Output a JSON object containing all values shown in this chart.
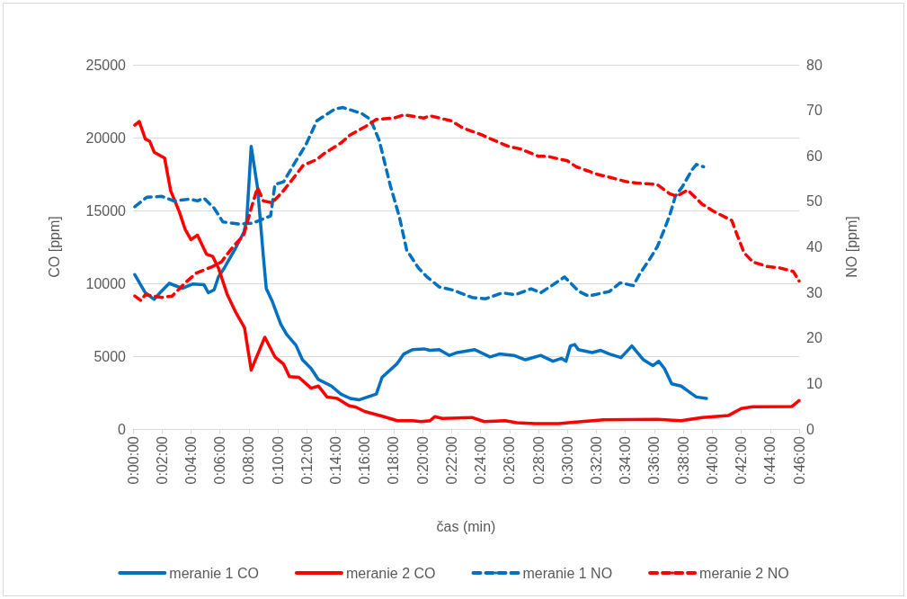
{
  "chart_data": {
    "type": "line",
    "xlabel": "čas (min)",
    "ylabel": "CO [ppm]",
    "y2label": "NO [ppm]",
    "xlim": [
      0,
      46
    ],
    "xticks": [
      {
        "value": 0,
        "label": "0:00:00"
      },
      {
        "value": 2,
        "label": "0:02:00"
      },
      {
        "value": 4,
        "label": "0:04:00"
      },
      {
        "value": 6,
        "label": "0:06:00"
      },
      {
        "value": 8,
        "label": "0:08:00"
      },
      {
        "value": 10,
        "label": "0:10:00"
      },
      {
        "value": 12,
        "label": "0:12:00"
      },
      {
        "value": 14,
        "label": "0:14:00"
      },
      {
        "value": 16,
        "label": "0:16:00"
      },
      {
        "value": 18,
        "label": "0:18:00"
      },
      {
        "value": 20,
        "label": "0:20:00"
      },
      {
        "value": 22,
        "label": "0:22:00"
      },
      {
        "value": 24,
        "label": "0:24:00"
      },
      {
        "value": 26,
        "label": "0:26:00"
      },
      {
        "value": 28,
        "label": "0:28:00"
      },
      {
        "value": 30,
        "label": "0:30:00"
      },
      {
        "value": 32,
        "label": "0:32:00"
      },
      {
        "value": 34,
        "label": "0:34:00"
      },
      {
        "value": 36,
        "label": "0:36:00"
      },
      {
        "value": 38,
        "label": "0:38:00"
      },
      {
        "value": 40,
        "label": "0:40:00"
      },
      {
        "value": 42,
        "label": "0:42:00"
      },
      {
        "value": 44,
        "label": "0:44:00"
      },
      {
        "value": 46,
        "label": "0:46:00"
      }
    ],
    "ylim": [
      0,
      25000
    ],
    "yticks": [
      0,
      5000,
      10000,
      15000,
      20000,
      25000
    ],
    "y2lim": [
      0,
      80
    ],
    "y2ticks": [
      0,
      10,
      20,
      30,
      40,
      50,
      60,
      70,
      80
    ],
    "grid": "y",
    "legend": "bottom",
    "marker": "none",
    "series": [
      {
        "name": "meranie 1 CO",
        "color": "#0070c0",
        "line_style": "solid",
        "x": [
          0.12,
          0.85,
          1.46,
          1.86,
          2.5,
          3.4,
          4.1,
          4.9,
          5.2,
          5.6,
          5.9,
          6.3,
          7.1,
          7.65,
          7.85,
          8.16,
          8.6,
          9.0,
          9.2,
          9.6,
          10.2,
          10.6,
          11.25,
          11.7,
          12.3,
          12.8,
          13.7,
          14.35,
          15.0,
          15.6,
          16.8,
          17.2,
          18.25,
          18.7,
          19.3,
          20.1,
          20.5,
          21.15,
          21.85,
          22.4,
          23.6,
          24.65,
          25.3,
          26.3,
          27.1,
          28.15,
          29.0,
          29.6,
          29.9,
          30.2,
          30.5,
          30.75,
          31.7,
          32.3,
          32.9,
          33.7,
          34.45,
          35.25,
          35.9,
          36.3,
          36.7,
          37.2,
          37.85,
          38.9,
          39.6
        ],
        "values": [
          10600,
          9350,
          8900,
          9350,
          10000,
          9650,
          9950,
          9900,
          9350,
          9550,
          10450,
          11050,
          12450,
          13500,
          14300,
          19400,
          16550,
          11850,
          9650,
          8800,
          7200,
          6500,
          5750,
          4750,
          4150,
          3400,
          2950,
          2400,
          2100,
          2000,
          2400,
          3550,
          4500,
          5150,
          5450,
          5500,
          5400,
          5450,
          5050,
          5250,
          5450,
          4950,
          5150,
          5050,
          4750,
          5050,
          4650,
          4850,
          4650,
          5700,
          5800,
          5450,
          5250,
          5400,
          5150,
          4900,
          5700,
          4750,
          4350,
          4650,
          4150,
          3100,
          2950,
          2200,
          2100
        ]
      },
      {
        "name": "meranie 2 CO",
        "color": "#ff0000",
        "line_style": "solid",
        "x": [
          0.12,
          0.43,
          0.85,
          1.15,
          1.46,
          2.18,
          2.6,
          3.2,
          3.6,
          4.0,
          4.45,
          5.07,
          5.5,
          5.9,
          6.5,
          7.1,
          7.7,
          8.16,
          9.1,
          9.8,
          10.4,
          10.8,
          11.45,
          12.3,
          12.8,
          13.4,
          14.1,
          14.9,
          15.4,
          16.0,
          17.2,
          18.25,
          19.3,
          19.9,
          20.5,
          20.85,
          21.35,
          23.4,
          24.25,
          25.7,
          26.5,
          27.75,
          29.4,
          30.4,
          32.5,
          36.2,
          37.85,
          39.3,
          41.1,
          42.0,
          42.8,
          45.5,
          46.0
        ],
        "values": [
          20850,
          21100,
          19900,
          19750,
          19000,
          18600,
          16350,
          14900,
          13700,
          13000,
          13300,
          12000,
          11850,
          11050,
          9250,
          8000,
          6950,
          4050,
          6300,
          4950,
          4450,
          3600,
          3550,
          2800,
          2950,
          2200,
          2100,
          1600,
          1500,
          1200,
          880,
          570,
          570,
          510,
          570,
          850,
          730,
          790,
          510,
          570,
          430,
          370,
          370,
          470,
          630,
          670,
          570,
          790,
          920,
          1400,
          1530,
          1550,
          1950
        ]
      },
      {
        "name": "meranie 1 NO",
        "color": "#0070c0",
        "line_style": "dashed",
        "axis": "y2",
        "x": [
          0.12,
          0.95,
          2.0,
          2.8,
          3.95,
          4.45,
          4.9,
          5.6,
          6.2,
          7.35,
          8.27,
          9.5,
          9.8,
          10.4,
          11.25,
          11.9,
          12.7,
          13.95,
          14.5,
          15.8,
          16.4,
          17.0,
          17.75,
          18.4,
          18.9,
          19.7,
          20.3,
          21.15,
          22.1,
          23.4,
          24.35,
          25.5,
          26.4,
          27.5,
          28.15,
          29.2,
          29.8,
          30.8,
          31.45,
          32.9,
          33.65,
          34.55,
          35.0,
          35.7,
          36.2,
          36.7,
          37.05,
          37.45,
          37.95,
          38.6,
          38.9,
          39.4
        ],
        "values": [
          48.8,
          50.9,
          51.1,
          50.1,
          50.5,
          50.1,
          50.7,
          48.5,
          45.5,
          45.0,
          45.2,
          46.8,
          53.7,
          54.3,
          58.9,
          62.2,
          67.7,
          70.3,
          70.6,
          69.3,
          68.0,
          63.4,
          53.7,
          46.5,
          39.3,
          35.4,
          33.4,
          31.2,
          30.5,
          28.9,
          28.6,
          29.9,
          29.5,
          30.8,
          29.9,
          32.1,
          33.4,
          30.2,
          29.2,
          30.2,
          32.1,
          31.5,
          34.1,
          37.4,
          40.0,
          43.9,
          46.8,
          51.1,
          53.3,
          56.9,
          58.1,
          57.6
        ]
      },
      {
        "name": "meranie 2 NO",
        "color": "#ff0000",
        "line_style": "dashed",
        "axis": "y2",
        "x": [
          0.12,
          0.55,
          0.85,
          2.0,
          2.7,
          3.6,
          4.35,
          5.5,
          6.1,
          6.9,
          7.65,
          8.16,
          8.6,
          9.0,
          9.6,
          10.3,
          11.05,
          11.75,
          12.7,
          13.2,
          14.35,
          15.0,
          16.2,
          16.8,
          18.05,
          18.7,
          20.1,
          20.5,
          21.95,
          22.8,
          24.0,
          24.65,
          25.9,
          26.75,
          28.0,
          28.6,
          30.0,
          30.6,
          32.1,
          32.9,
          34.1,
          34.85,
          36.2,
          37.05,
          37.55,
          38.3,
          39.3,
          40.1,
          41.35,
          41.65,
          42.2,
          42.8,
          43.8,
          44.65,
          45.6,
          46.0
        ],
        "values": [
          29.2,
          28.2,
          29.5,
          28.9,
          29.2,
          32.1,
          34.2,
          35.7,
          36.7,
          40.0,
          42.6,
          48.5,
          53.0,
          50.1,
          49.7,
          52.0,
          55.0,
          57.9,
          59.2,
          60.5,
          62.8,
          64.6,
          66.7,
          68.0,
          68.3,
          69.0,
          68.3,
          68.8,
          67.7,
          66.1,
          64.7,
          63.8,
          62.1,
          61.5,
          59.9,
          59.9,
          58.9,
          57.6,
          55.9,
          55.3,
          54.3,
          54.0,
          53.7,
          51.7,
          51.1,
          52.5,
          49.4,
          47.8,
          45.8,
          43.2,
          38.7,
          36.7,
          35.7,
          35.4,
          34.6,
          32.5
        ]
      }
    ]
  }
}
